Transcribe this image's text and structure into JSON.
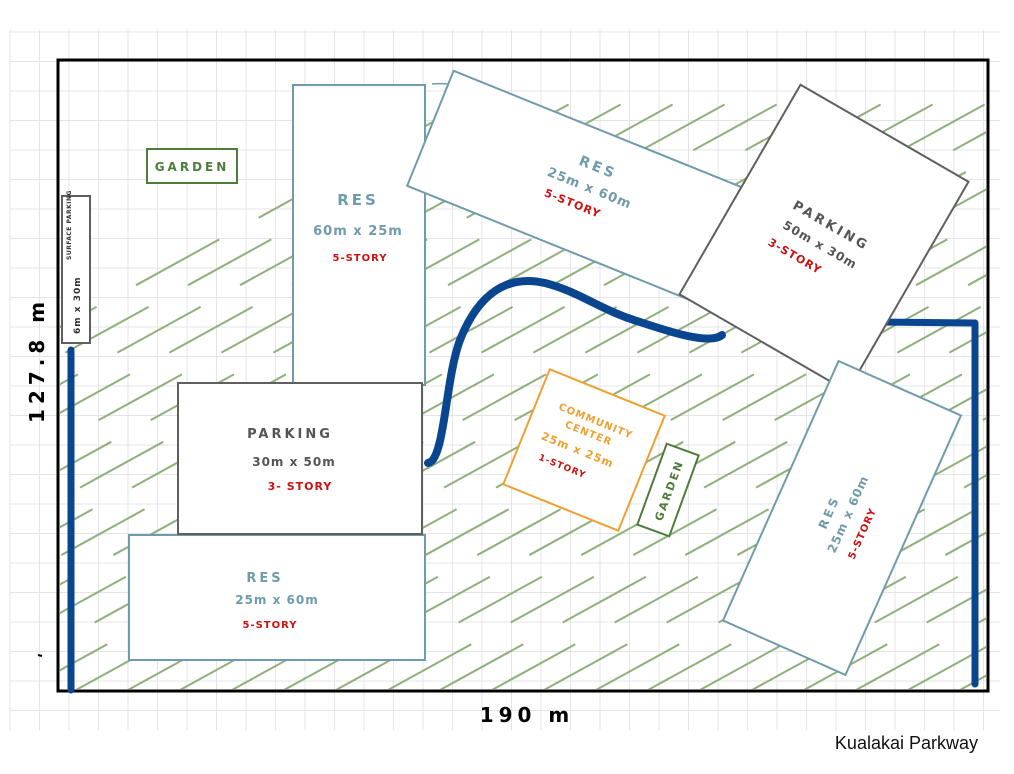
{
  "site": {
    "height_label": "127.8 m",
    "width_label": "190 m",
    "road_label": "Kualakai Parkway"
  },
  "gardens": [
    {
      "label": "GARDEN"
    },
    {
      "label": "GARDEN"
    }
  ],
  "surface_parking": {
    "line1": "6m x 30m",
    "line2": "SURFACE PARKING"
  },
  "buildings": [
    {
      "name": "RES",
      "dims": "60m x 25m",
      "story": "5-STORY"
    },
    {
      "name": "RES",
      "dims": "25m x 60m",
      "story": "5-STORY"
    },
    {
      "name": "PARKING",
      "dims": "50m x 30m",
      "story": "3-STORY"
    },
    {
      "name": "PARKING",
      "dims": "30m x 50m",
      "story": "3- STORY"
    },
    {
      "name": "COMMUNITY CENTER",
      "name_line1": "COMMUNITY",
      "name_line2": "CENTER",
      "dims": "25m x 25m",
      "story": "1-STORY"
    },
    {
      "name": "RES",
      "dims": "25m x 60m",
      "story": "5-STORY"
    },
    {
      "name": "RES",
      "dims": "25m x 60m",
      "story": "5-STORY"
    }
  ],
  "colors": {
    "residential": "#6f9bab",
    "parking": "#5f5f5f",
    "community": "#f0a030",
    "garden": "#4f7c3a",
    "story_text": "#cc1111",
    "road": "#0a4690",
    "hatch": "#8fb07a",
    "grid": "#e4e4e4",
    "border": "#000000"
  }
}
